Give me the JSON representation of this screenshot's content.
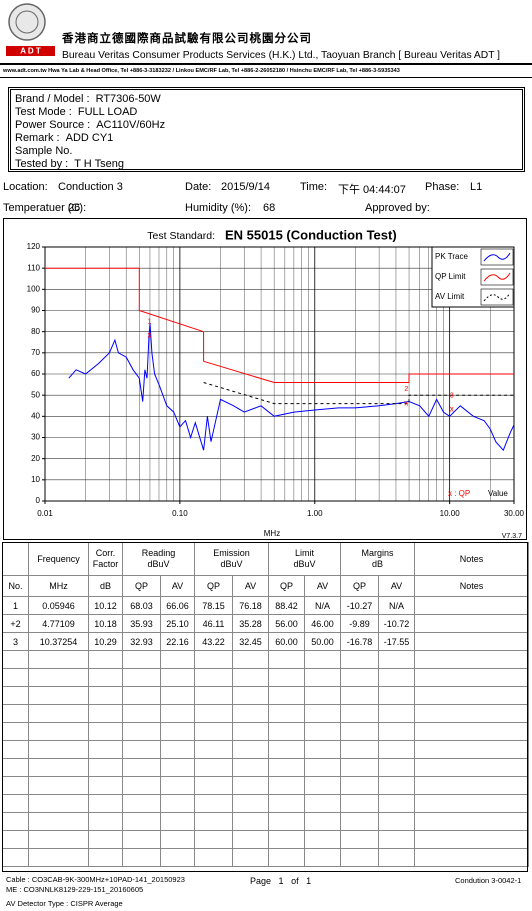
{
  "header": {
    "logo_text": "A D T",
    "company_cn": "香港商立德國際商品試驗有限公司桃園分公司",
    "company_en": "Bureau Veritas Consumer Products Services (H.K.) Ltd., Taoyuan Branch [ Bureau Veritas ADT ]",
    "contact": "www.adt.com.tw    Hwa Ya Lab & Head Office, Tel +886-3-3183232  /  Linkou EMC/RF Lab, Tel +886-2-26052180  /  Hsinchu EMC/RF Lab, Tel +886-3-5935343"
  },
  "info": [
    {
      "label": "Brand / Model :",
      "value": "RT7306-50W"
    },
    {
      "label": "Test Mode :",
      "value": "FULL LOAD"
    },
    {
      "label": "Power Source :",
      "value": "AC110V/60Hz"
    },
    {
      "label": "Remark :",
      "value": "ADD CY1"
    },
    {
      "label": "Sample No."
    },
    {
      "label": "Tested by :",
      "value": "T H Tseng"
    }
  ],
  "conditions": [
    {
      "label": "Location:",
      "value": "Conduction 3"
    },
    {
      "label": "Date:",
      "value": "2015/9/14"
    },
    {
      "label": "Time:",
      "value": "下午 04:44:07"
    },
    {
      "label": "Phase:",
      "value": "L1"
    },
    {
      "label": "Temperatuer (C):",
      "value": "26"
    },
    {
      "label": "Humidity (%):",
      "value": "68"
    },
    {
      "label": "Approved by:"
    }
  ],
  "chart_data": {
    "type": "line",
    "title_label": "Test Standard:",
    "title": "EN 55015 (Conduction Test)",
    "x_label": "MHz",
    "version": "V7.3.7",
    "xscale": "log",
    "xlim": [
      0.01,
      30
    ],
    "xticks": [
      0.01,
      {
        "value": 0.1,
        "label": "0.10"
      },
      {
        "value": 1,
        "label": "1.00"
      },
      {
        "value": 10,
        "label": "10.00"
      },
      {
        "value": 30,
        "label": "30.00"
      }
    ],
    "ylim": [
      0,
      120
    ],
    "yticks": [
      0,
      10,
      20,
      30,
      40,
      50,
      60,
      70,
      80,
      90,
      100,
      110,
      120
    ],
    "grid": true,
    "legend": "top-right",
    "series": [
      {
        "name": "PK Trace",
        "color": "#0000ff",
        "style": "solid",
        "x": [
          0.015,
          0.017,
          0.02,
          0.025,
          0.03,
          0.033,
          0.035,
          0.04,
          0.045,
          0.05,
          0.053,
          0.055,
          0.057,
          0.059,
          0.06,
          0.062,
          0.065,
          0.07,
          0.08,
          0.09,
          0.1,
          0.11,
          0.12,
          0.13,
          0.15,
          0.16,
          0.17,
          0.2,
          0.25,
          0.3,
          0.4,
          0.5,
          0.7,
          1,
          1.5,
          2,
          3,
          4,
          5,
          6,
          7,
          8,
          9,
          10,
          12,
          15,
          18,
          20,
          22,
          25,
          28,
          30
        ],
        "values": [
          58,
          62,
          60,
          65,
          70,
          76,
          70,
          68,
          62,
          58,
          47,
          62,
          58,
          78,
          84,
          70,
          60,
          55,
          45,
          42,
          35,
          38,
          30,
          37,
          24,
          40,
          28,
          48,
          45,
          42,
          45,
          40,
          42,
          43,
          44,
          44,
          45,
          46,
          47,
          45,
          40,
          48,
          42,
          40,
          45,
          40,
          38,
          34,
          28,
          24,
          32,
          36
        ]
      },
      {
        "name": "QP Limit",
        "color": "#ff0000",
        "style": "solid",
        "x": [
          0.01,
          0.05,
          0.05,
          0.15,
          0.15,
          0.5,
          5,
          5,
          30
        ],
        "values": [
          110,
          110,
          90,
          80,
          66,
          56,
          56,
          60,
          60
        ]
      },
      {
        "name": "AV Limit",
        "color": "#000000",
        "style": "dashed",
        "x": [
          0.15,
          0.5,
          5,
          5,
          30
        ],
        "values": [
          56,
          46,
          46,
          50,
          50
        ]
      }
    ],
    "markers": {
      "labels": [
        "1",
        "2",
        "3"
      ],
      "x": [
        0.05946,
        4.77109,
        10.37254
      ],
      "values": [
        78.15,
        46.11,
        43.22
      ],
      "symbol": "x",
      "color": "#ff0000"
    },
    "marker_legend": "x : QP",
    "value_legend": "Value"
  },
  "table": {
    "header_top": [
      [
        "Frequency"
      ],
      [
        "Corr.",
        "Factor"
      ],
      [
        "Reading",
        "dBuV"
      ],
      [
        "Emission",
        "dBuV"
      ],
      [
        "Limit",
        "dBuV"
      ],
      [
        "Margins",
        "dB"
      ],
      [
        "Notes"
      ]
    ],
    "header_bottom": [
      "No.",
      "MHz",
      "dB",
      "QP",
      "AV",
      "QP",
      "AV",
      "QP",
      "AV",
      "QP",
      "AV",
      "Notes"
    ],
    "rows": [
      [
        "1",
        "0.05946",
        "10.12",
        "68.03",
        "66.06",
        "78.15",
        "76.18",
        "88.42",
        "N/A",
        "-10.27",
        "N/A"
      ],
      [
        "+2",
        "4.77109",
        "10.18",
        "35.93",
        "25.10",
        "46.11",
        "35.28",
        "56.00",
        "46.00",
        "-9.89",
        "-10.72"
      ],
      [
        "3",
        "10.37254",
        "10.29",
        "32.93",
        "22.16",
        "43.22",
        "32.45",
        "60.00",
        "50.00",
        "-16.78",
        "-17.55"
      ]
    ]
  },
  "footer": {
    "cable": "Cable : CO3CAB-9K-300MHz+10PAD-141_20150923",
    "me": "ME : CO3NNLK8129-229-151_20160605",
    "detector": "AV Detector Type : CISPR Average",
    "page_word": "Page",
    "page": "1",
    "of_word": "of",
    "pages": "1",
    "report": "Condution 3-0042-1"
  }
}
